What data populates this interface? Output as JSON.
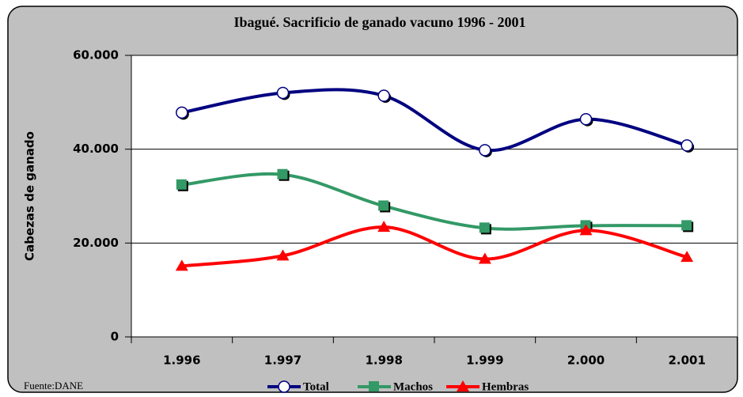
{
  "chart_data": {
    "type": "line",
    "title": "Ibagué. Sacrificio de ganado vacuno 1996 - 2001",
    "y_label": "Cabezas de ganado",
    "source": "Fuente:DANE",
    "categories": [
      "1.996",
      "1.997",
      "1.998",
      "1.999",
      "2.000",
      "2.001"
    ],
    "series": [
      {
        "name": "Total",
        "color": "#000080",
        "marker": "circle",
        "values": [
          47800,
          52000,
          51400,
          39800,
          46400,
          40800
        ]
      },
      {
        "name": "Machos",
        "color": "#339966",
        "marker": "square",
        "values": [
          32400,
          34600,
          27900,
          23200,
          23700,
          23700
        ]
      },
      {
        "name": "Hembras",
        "color": "#ff0000",
        "marker": "triangle",
        "values": [
          15100,
          17300,
          23400,
          16600,
          22700,
          17000
        ]
      }
    ],
    "ylim": [
      0,
      60000
    ],
    "yticks": [
      0,
      {
        "value": 20000,
        "label": "20.000"
      },
      {
        "value": 40000,
        "label": "40.000"
      },
      {
        "value": 60000,
        "label": "60.000"
      }
    ],
    "grid": true
  }
}
